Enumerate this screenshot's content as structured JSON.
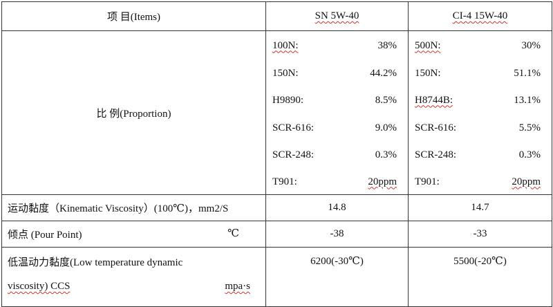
{
  "header": {
    "items": "项   目(Items)",
    "col1": "SN   5W-40",
    "col2": "CI-4 15W-40"
  },
  "proportion": {
    "label": "比      例(Proportion)",
    "sn": [
      {
        "name": "100N:",
        "value": "38%"
      },
      {
        "name": "150N:",
        "value": "44.2%"
      },
      {
        "name": "H9890:",
        "value": "8.5%"
      },
      {
        "name": "SCR-616:",
        "value": "9.0%"
      },
      {
        "name": "SCR-248:",
        "value": "0.3%"
      },
      {
        "name": "T901:",
        "value": "20ppm"
      }
    ],
    "ci4": [
      {
        "name": "500N:",
        "value": "30%"
      },
      {
        "name": "150N:",
        "value": "51.1%"
      },
      {
        "name": "H8744B:",
        "value": "13.1%"
      },
      {
        "name": "SCR-616:",
        "value": "5.5%"
      },
      {
        "name": "SCR-248:",
        "value": "0.3%"
      },
      {
        "name": "T901:",
        "value": "20ppm"
      }
    ]
  },
  "kinematic": {
    "label": "运动黏度（Kinematic Viscosity）(100℃)，mm2/S",
    "sn": "14.8",
    "ci4": "14.7"
  },
  "pour_point": {
    "label": "倾点  (Pour Point)",
    "unit": "℃",
    "sn": "-38",
    "ci4": "-33"
  },
  "low_temp": {
    "label_line1": "低温动力黏度(Low temperature dynamic",
    "label_line2": "viscosity) CCS",
    "unit": "mpa·s",
    "sn": "6200(-30℃)",
    "ci4": "5500(-20℃)"
  }
}
